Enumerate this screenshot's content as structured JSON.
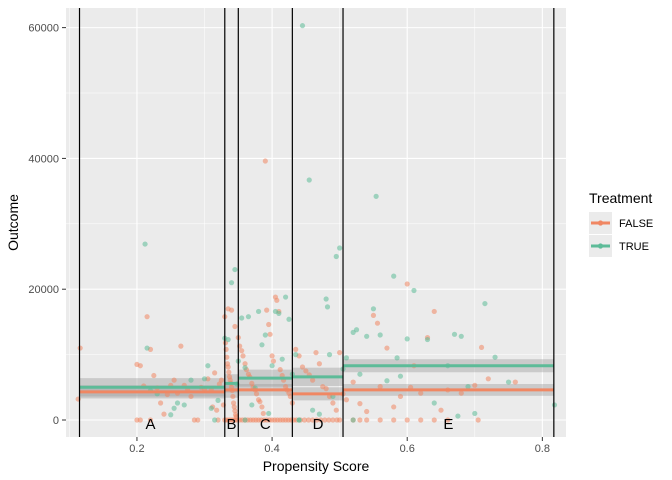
{
  "chart_data": {
    "type": "scatter",
    "title": "",
    "xlabel": "Propensity Score",
    "ylabel": "Outcome",
    "xlim": [
      0.095,
      0.835
    ],
    "ylim": [
      -2600,
      63000
    ],
    "x_ticks": [
      0.2,
      0.4,
      0.6,
      0.8
    ],
    "x_tick_labels": [
      "0.2",
      "0.4",
      "0.6",
      "0.8"
    ],
    "y_ticks": [
      0,
      20000,
      40000,
      60000
    ],
    "y_tick_labels": [
      "0",
      "20000",
      "40000",
      "60000"
    ],
    "grid": true,
    "legend": {
      "title": "Treatment",
      "placement": "right",
      "entries": [
        {
          "label": "FALSE",
          "color": "#F08763"
        },
        {
          "label": "TRUE",
          "color": "#5DBB98"
        }
      ]
    },
    "vlines": [
      0.115,
      0.33,
      0.35,
      0.43,
      0.505,
      0.817
    ],
    "block_labels": [
      {
        "label": "A",
        "x": 0.22,
        "y": -600
      },
      {
        "label": "B",
        "x": 0.34,
        "y": -600
      },
      {
        "label": "C",
        "x": 0.39,
        "y": -600
      },
      {
        "label": "D",
        "x": 0.468,
        "y": -600
      },
      {
        "label": "E",
        "x": 0.661,
        "y": -600
      }
    ],
    "fit_lines": [
      {
        "name": "FALSE",
        "color": "#F08763",
        "segments": [
          {
            "x0": 0.115,
            "x1": 0.33,
            "y": 4300,
            "lo": 3300,
            "hi": 5300
          },
          {
            "x0": 0.33,
            "x1": 0.35,
            "y": 4600,
            "lo": 3400,
            "hi": 5800
          },
          {
            "x0": 0.35,
            "x1": 0.43,
            "y": 4600,
            "lo": 3700,
            "hi": 5500
          },
          {
            "x0": 0.43,
            "x1": 0.505,
            "y": 4000,
            "lo": 3000,
            "hi": 5000
          },
          {
            "x0": 0.505,
            "x1": 0.817,
            "y": 4600,
            "lo": 3700,
            "hi": 5500
          }
        ]
      },
      {
        "name": "TRUE",
        "color": "#5DBB98",
        "segments": [
          {
            "x0": 0.115,
            "x1": 0.33,
            "y": 5000,
            "lo": 3600,
            "hi": 6400
          },
          {
            "x0": 0.33,
            "x1": 0.35,
            "y": 5600,
            "lo": 4200,
            "hi": 7000
          },
          {
            "x0": 0.35,
            "x1": 0.43,
            "y": 6400,
            "lo": 5100,
            "hi": 7700
          },
          {
            "x0": 0.43,
            "x1": 0.505,
            "y": 6600,
            "lo": 5200,
            "hi": 8000
          },
          {
            "x0": 0.505,
            "x1": 0.817,
            "y": 8300,
            "lo": 7300,
            "hi": 9300
          }
        ]
      }
    ],
    "series": [
      {
        "name": "FALSE",
        "color": "#F08763",
        "points": [
          [
            0.113,
            3200
          ],
          [
            0.116,
            11000
          ],
          [
            0.2,
            8500
          ],
          [
            0.205,
            8300
          ],
          [
            0.21,
            5200
          ],
          [
            0.215,
            15800
          ],
          [
            0.22,
            10800
          ],
          [
            0.225,
            6800
          ],
          [
            0.23,
            4900
          ],
          [
            0.235,
            2600
          ],
          [
            0.24,
            900
          ],
          [
            0.2,
            0
          ],
          [
            0.205,
            0
          ],
          [
            0.22,
            0
          ],
          [
            0.245,
            3900
          ],
          [
            0.25,
            5300
          ],
          [
            0.255,
            6100
          ],
          [
            0.26,
            4100
          ],
          [
            0.265,
            11300
          ],
          [
            0.27,
            5300
          ],
          [
            0.275,
            4600
          ],
          [
            0.28,
            3600
          ],
          [
            0.285,
            0
          ],
          [
            0.29,
            0
          ],
          [
            0.295,
            5000
          ],
          [
            0.3,
            4700
          ],
          [
            0.305,
            6300
          ],
          [
            0.31,
            4600
          ],
          [
            0.312,
            2000
          ],
          [
            0.315,
            7200
          ],
          [
            0.318,
            1500
          ],
          [
            0.32,
            0
          ],
          [
            0.322,
            5500
          ],
          [
            0.325,
            6100
          ],
          [
            0.328,
            2300
          ],
          [
            0.33,
            15800
          ],
          [
            0.331,
            11800
          ],
          [
            0.332,
            10800
          ],
          [
            0.333,
            9600
          ],
          [
            0.334,
            8600
          ],
          [
            0.335,
            8100
          ],
          [
            0.336,
            7300
          ],
          [
            0.337,
            6600
          ],
          [
            0.338,
            6100
          ],
          [
            0.339,
            5600
          ],
          [
            0.34,
            5000
          ],
          [
            0.341,
            4500
          ],
          [
            0.342,
            3600
          ],
          [
            0.343,
            2600
          ],
          [
            0.344,
            2000
          ],
          [
            0.345,
            1400
          ],
          [
            0.346,
            800
          ],
          [
            0.347,
            500
          ],
          [
            0.33,
            0
          ],
          [
            0.333,
            0
          ],
          [
            0.336,
            0
          ],
          [
            0.339,
            0
          ],
          [
            0.342,
            0
          ],
          [
            0.345,
            0
          ],
          [
            0.348,
            0
          ],
          [
            0.335,
            17000
          ],
          [
            0.34,
            16800
          ],
          [
            0.345,
            14300
          ],
          [
            0.35,
            12600
          ],
          [
            0.352,
            11300
          ],
          [
            0.355,
            10600
          ],
          [
            0.357,
            9800
          ],
          [
            0.36,
            8600
          ],
          [
            0.362,
            7700
          ],
          [
            0.365,
            7000
          ],
          [
            0.367,
            6600
          ],
          [
            0.37,
            5600
          ],
          [
            0.372,
            5000
          ],
          [
            0.375,
            4600
          ],
          [
            0.377,
            4000
          ],
          [
            0.38,
            3100
          ],
          [
            0.382,
            2800
          ],
          [
            0.385,
            2000
          ],
          [
            0.387,
            1000
          ],
          [
            0.39,
            39600
          ],
          [
            0.392,
            16800
          ],
          [
            0.395,
            14600
          ],
          [
            0.397,
            13100
          ],
          [
            0.4,
            9800
          ],
          [
            0.402,
            9000
          ],
          [
            0.405,
            18800
          ],
          [
            0.407,
            18300
          ],
          [
            0.41,
            16600
          ],
          [
            0.412,
            7700
          ],
          [
            0.415,
            6800
          ],
          [
            0.417,
            6100
          ],
          [
            0.42,
            5100
          ],
          [
            0.422,
            4600
          ],
          [
            0.425,
            4100
          ],
          [
            0.427,
            3600
          ],
          [
            0.43,
            2600
          ],
          [
            0.352,
            0
          ],
          [
            0.356,
            0
          ],
          [
            0.36,
            0
          ],
          [
            0.364,
            0
          ],
          [
            0.368,
            0
          ],
          [
            0.372,
            0
          ],
          [
            0.376,
            0
          ],
          [
            0.38,
            0
          ],
          [
            0.384,
            0
          ],
          [
            0.388,
            0
          ],
          [
            0.392,
            0
          ],
          [
            0.396,
            0
          ],
          [
            0.4,
            0
          ],
          [
            0.404,
            0
          ],
          [
            0.408,
            0
          ],
          [
            0.412,
            0
          ],
          [
            0.416,
            0
          ],
          [
            0.42,
            0
          ],
          [
            0.424,
            0
          ],
          [
            0.428,
            0
          ],
          [
            0.432,
            0
          ],
          [
            0.435,
            10800
          ],
          [
            0.44,
            9800
          ],
          [
            0.445,
            8100
          ],
          [
            0.45,
            7500
          ],
          [
            0.455,
            6900
          ],
          [
            0.46,
            6100
          ],
          [
            0.465,
            10300
          ],
          [
            0.47,
            8600
          ],
          [
            0.475,
            5100
          ],
          [
            0.48,
            4800
          ],
          [
            0.485,
            3600
          ],
          [
            0.49,
            2600
          ],
          [
            0.495,
            1500
          ],
          [
            0.5,
            10300
          ],
          [
            0.436,
            0
          ],
          [
            0.442,
            0
          ],
          [
            0.448,
            0
          ],
          [
            0.454,
            0
          ],
          [
            0.46,
            0
          ],
          [
            0.466,
            0
          ],
          [
            0.472,
            0
          ],
          [
            0.478,
            0
          ],
          [
            0.484,
            0
          ],
          [
            0.49,
            0
          ],
          [
            0.496,
            0
          ],
          [
            0.5,
            0
          ],
          [
            0.505,
            4000
          ],
          [
            0.51,
            3100
          ],
          [
            0.52,
            5800
          ],
          [
            0.53,
            2500
          ],
          [
            0.54,
            1300
          ],
          [
            0.55,
            16000
          ],
          [
            0.556,
            14800
          ],
          [
            0.56,
            5100
          ],
          [
            0.57,
            11000
          ],
          [
            0.58,
            2000
          ],
          [
            0.59,
            3600
          ],
          [
            0.6,
            20800
          ],
          [
            0.605,
            5000
          ],
          [
            0.61,
            8300
          ],
          [
            0.62,
            4100
          ],
          [
            0.63,
            12600
          ],
          [
            0.64,
            16600
          ],
          [
            0.65,
            1500
          ],
          [
            0.66,
            4600
          ],
          [
            0.68,
            4100
          ],
          [
            0.7,
            5300
          ],
          [
            0.705,
            0
          ],
          [
            0.71,
            11100
          ],
          [
            0.72,
            6300
          ],
          [
            0.76,
            5800
          ],
          [
            0.52,
            0
          ],
          [
            0.53,
            0
          ],
          [
            0.54,
            0
          ],
          [
            0.56,
            0
          ],
          [
            0.58,
            0
          ],
          [
            0.6,
            0
          ],
          [
            0.62,
            0
          ],
          [
            0.64,
            0
          ],
          [
            0.66,
            0
          ]
        ]
      },
      {
        "name": "TRUE",
        "color": "#5DBB98",
        "points": [
          [
            0.212,
            26900
          ],
          [
            0.215,
            11000
          ],
          [
            0.22,
            4500
          ],
          [
            0.23,
            4000
          ],
          [
            0.25,
            800
          ],
          [
            0.255,
            1800
          ],
          [
            0.26,
            2600
          ],
          [
            0.27,
            2300
          ],
          [
            0.28,
            6100
          ],
          [
            0.3,
            6300
          ],
          [
            0.305,
            8300
          ],
          [
            0.31,
            1800
          ],
          [
            0.315,
            0
          ],
          [
            0.32,
            3000
          ],
          [
            0.33,
            12500
          ],
          [
            0.335,
            12300
          ],
          [
            0.34,
            21000
          ],
          [
            0.345,
            23000
          ],
          [
            0.348,
            5500
          ],
          [
            0.35,
            9000
          ],
          [
            0.355,
            15600
          ],
          [
            0.36,
            8000
          ],
          [
            0.365,
            15800
          ],
          [
            0.37,
            2300
          ],
          [
            0.375,
            4900
          ],
          [
            0.38,
            16600
          ],
          [
            0.385,
            11500
          ],
          [
            0.39,
            13000
          ],
          [
            0.395,
            1000
          ],
          [
            0.4,
            8300
          ],
          [
            0.405,
            16600
          ],
          [
            0.41,
            16300
          ],
          [
            0.415,
            9300
          ],
          [
            0.42,
            18800
          ],
          [
            0.425,
            15400
          ],
          [
            0.43,
            7000
          ],
          [
            0.435,
            10000
          ],
          [
            0.44,
            0
          ],
          [
            0.445,
            60300
          ],
          [
            0.455,
            36700
          ],
          [
            0.46,
            1500
          ],
          [
            0.47,
            900
          ],
          [
            0.48,
            18500
          ],
          [
            0.482,
            17300
          ],
          [
            0.485,
            10000
          ],
          [
            0.49,
            3600
          ],
          [
            0.495,
            25000
          ],
          [
            0.5,
            26300
          ],
          [
            0.505,
            7800
          ],
          [
            0.51,
            9500
          ],
          [
            0.52,
            13400
          ],
          [
            0.525,
            13800
          ],
          [
            0.53,
            7000
          ],
          [
            0.54,
            12800
          ],
          [
            0.55,
            17000
          ],
          [
            0.554,
            34200
          ],
          [
            0.56,
            13000
          ],
          [
            0.57,
            6000
          ],
          [
            0.58,
            22000
          ],
          [
            0.585,
            9500
          ],
          [
            0.59,
            6700
          ],
          [
            0.6,
            12400
          ],
          [
            0.61,
            19800
          ],
          [
            0.63,
            12300
          ],
          [
            0.64,
            2600
          ],
          [
            0.66,
            8300
          ],
          [
            0.67,
            13100
          ],
          [
            0.675,
            600
          ],
          [
            0.68,
            12800
          ],
          [
            0.69,
            5100
          ],
          [
            0.7,
            1000
          ],
          [
            0.715,
            17800
          ],
          [
            0.73,
            9600
          ],
          [
            0.75,
            5800
          ],
          [
            0.818,
            2300
          ],
          [
            0.36,
            0
          ],
          [
            0.44,
            0
          ],
          [
            0.52,
            0
          ]
        ]
      }
    ]
  }
}
